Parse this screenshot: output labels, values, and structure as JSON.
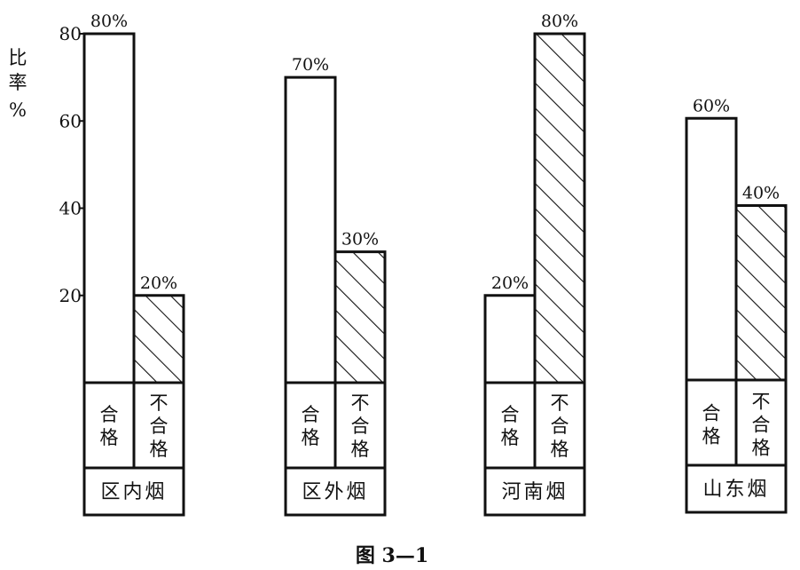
{
  "chart_data": {
    "type": "bar",
    "caption": "图 3—1",
    "ylabel": [
      "比",
      "率",
      "%"
    ],
    "yticks": [
      20,
      40,
      60,
      80
    ],
    "ylim": [
      0,
      80
    ],
    "bar_labels": [
      [
        "合",
        "格"
      ],
      [
        "不",
        "合",
        "格"
      ]
    ],
    "groups": [
      {
        "category": "区内烟",
        "bars": [
          {
            "label": "合格",
            "value": 80,
            "text": "80%",
            "hatched": false
          },
          {
            "label": "不合格",
            "value": 20,
            "text": "20%",
            "hatched": true
          }
        ]
      },
      {
        "category": "区外烟",
        "bars": [
          {
            "label": "合格",
            "value": 70,
            "text": "70%",
            "hatched": false
          },
          {
            "label": "不合格",
            "value": 30,
            "text": "30%",
            "hatched": true
          }
        ]
      },
      {
        "category": "河南烟",
        "bars": [
          {
            "label": "合格",
            "value": 20,
            "text": "20%",
            "hatched": false
          },
          {
            "label": "不合格",
            "value": 80,
            "text": "80%",
            "hatched": true
          }
        ]
      },
      {
        "category": "山东烟",
        "bars": [
          {
            "label": "合格",
            "value": 60,
            "text": "60%",
            "hatched": false
          },
          {
            "label": "不合格",
            "value": 40,
            "text": "40%",
            "hatched": true
          }
        ]
      }
    ]
  }
}
